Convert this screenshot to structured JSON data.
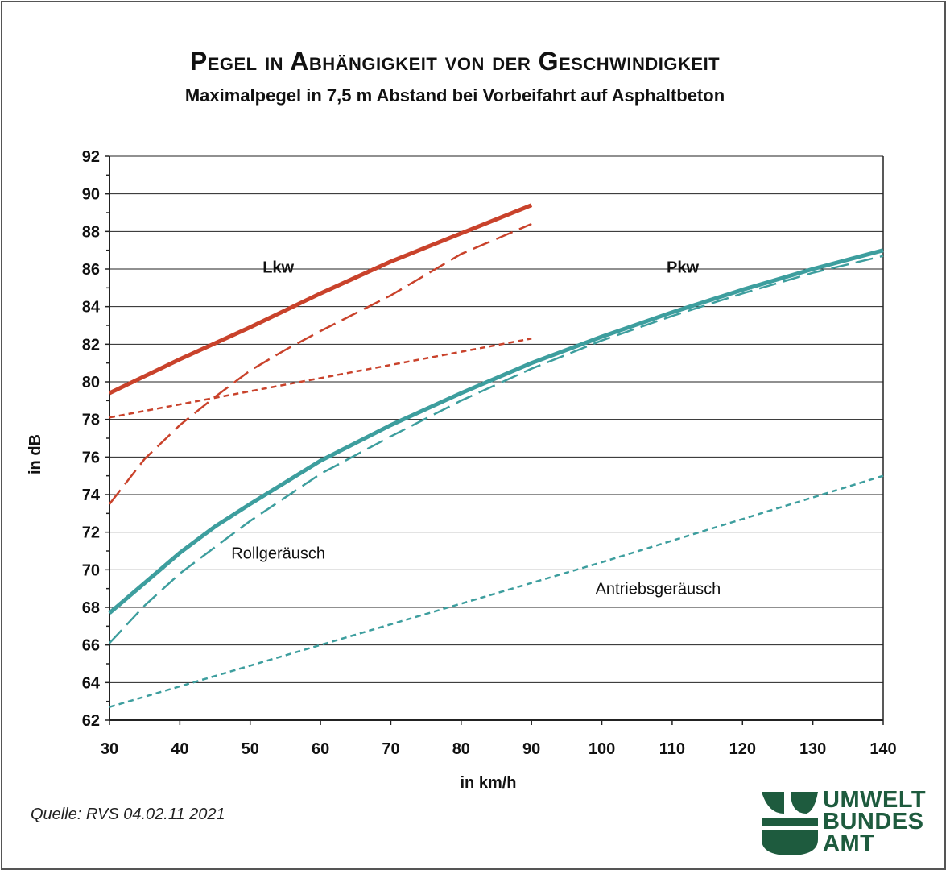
{
  "chart_data": {
    "type": "line",
    "title": "Pegel in Abhängigkeit von der Geschwindigkeit",
    "subtitle": "Maximalpegel in 7,5 m Abstand bei Vorbeifahrt auf Asphaltbeton",
    "xlabel": "in km/h",
    "ylabel": "in dB",
    "xlim": [
      30,
      140
    ],
    "ylim": [
      62,
      92
    ],
    "x_ticks": [
      "30",
      "40",
      "50",
      "60",
      "70",
      "80",
      "90",
      "100",
      "110",
      "120",
      "130",
      "140"
    ],
    "y_ticks": [
      "62",
      "64",
      "66",
      "68",
      "70",
      "72",
      "74",
      "76",
      "78",
      "80",
      "82",
      "84",
      "86",
      "88",
      "90",
      "92"
    ],
    "grid": "horizontal",
    "series": [
      {
        "name": "Lkw",
        "group": "Lkw",
        "style": "solid",
        "color": "#c9422b",
        "x": [
          30,
          40,
          50,
          60,
          70,
          80,
          90
        ],
        "y": [
          79.4,
          81.2,
          82.9,
          84.7,
          86.4,
          87.9,
          89.4
        ]
      },
      {
        "group": "Lkw",
        "style": "dashed",
        "color": "#c9422b",
        "x": [
          30,
          35,
          40,
          45,
          50,
          55,
          60,
          70,
          80,
          90
        ],
        "y": [
          73.5,
          75.9,
          77.7,
          79.2,
          80.6,
          81.7,
          82.7,
          84.6,
          86.8,
          88.4
        ]
      },
      {
        "group": "Lkw",
        "style": "dotted",
        "color": "#c9422b",
        "x": [
          30,
          50,
          70,
          90
        ],
        "y": [
          78.1,
          79.5,
          80.9,
          82.3
        ]
      },
      {
        "name": "Pkw",
        "group": "Pkw",
        "style": "solid",
        "color": "#3d9e9e",
        "x": [
          30,
          35,
          40,
          45,
          50,
          60,
          70,
          80,
          90,
          100,
          110,
          120,
          130,
          140
        ],
        "y": [
          67.7,
          69.3,
          70.9,
          72.3,
          73.5,
          75.8,
          77.7,
          79.4,
          81.0,
          82.4,
          83.7,
          84.9,
          86.0,
          87.0
        ]
      },
      {
        "name": "Rollgeräusch",
        "group": "Pkw",
        "style": "dashed",
        "color": "#3d9e9e",
        "x": [
          30,
          35,
          40,
          45,
          50,
          60,
          70,
          80,
          90,
          100,
          110,
          120,
          130,
          140
        ],
        "y": [
          66.1,
          68.1,
          69.8,
          71.2,
          72.6,
          75.1,
          77.1,
          79.0,
          80.7,
          82.2,
          83.5,
          84.7,
          85.8,
          86.7
        ]
      },
      {
        "name": "Antriebsgeräusch",
        "group": "Pkw",
        "style": "dotted",
        "color": "#3d9e9e",
        "x": [
          30,
          60,
          100,
          140
        ],
        "y": [
          62.7,
          66.0,
          70.4,
          75.0
        ]
      }
    ],
    "annotations": [
      {
        "text": "Lkw",
        "x": 54,
        "y": 85.8,
        "bold": true
      },
      {
        "text": "Pkw",
        "x": 111.5,
        "y": 85.8,
        "bold": true
      },
      {
        "text": "Rollgeräusch",
        "x": 54,
        "y": 70.6,
        "bold": false
      },
      {
        "text": "Antriebsgeräusch",
        "x": 108,
        "y": 68.7,
        "bold": false
      }
    ]
  },
  "source_note": "Quelle: RVS 04.02.11 2021",
  "logo": {
    "lines": [
      "UMWELT",
      "BUNDES",
      "AMT"
    ],
    "color": "#1e5b3e"
  }
}
